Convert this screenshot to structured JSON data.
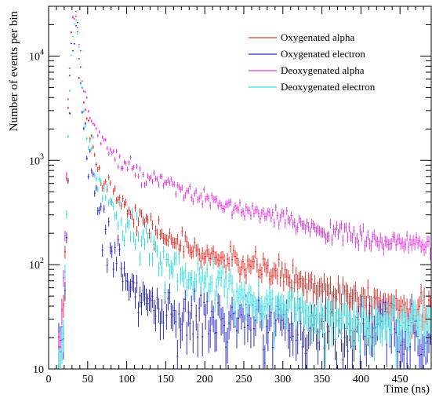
{
  "chart_data": {
    "type": "scatter",
    "title": "",
    "xlabel": "Time (ns)",
    "ylabel": "Number of events per bin",
    "xlim": [
      0,
      490
    ],
    "ylim": [
      10,
      30000
    ],
    "yscale": "log",
    "grid": false,
    "legend_position": "top-right",
    "x_ticks": [
      "0",
      "50",
      "100",
      "150",
      "200",
      "250",
      "300",
      "350",
      "400",
      "450"
    ],
    "y_ticks": [
      {
        "base": "10",
        "exp": ""
      },
      {
        "base": "10",
        "exp": "2"
      },
      {
        "base": "10",
        "exp": "3"
      },
      {
        "base": "10",
        "exp": "4"
      }
    ],
    "x": [
      15,
      20,
      25,
      30,
      35,
      40,
      45,
      50,
      60,
      70,
      80,
      90,
      100,
      125,
      150,
      175,
      200,
      250,
      300,
      350,
      400,
      450,
      490
    ],
    "series": [
      {
        "name": "Oxygenated alpha",
        "color": "#e8302a",
        "noise": 0.14,
        "values": [
          14,
          60,
          3000,
          20000,
          24000,
          9000,
          3500,
          2200,
          1100,
          700,
          520,
          430,
          380,
          250,
          185,
          150,
          125,
          100,
          80,
          60,
          50,
          40,
          35
        ]
      },
      {
        "name": "Oxygenated electron",
        "color": "#2b2bc8",
        "noise": 0.3,
        "values": [
          12,
          25,
          700,
          16000,
          20000,
          6500,
          2500,
          1200,
          500,
          240,
          150,
          100,
          70,
          45,
          36,
          32,
          30,
          28,
          26,
          25,
          24,
          23,
          22
        ]
      },
      {
        "name": "Deoxygenated alpha",
        "color": "#e83ae0",
        "noise": 0.1,
        "values": [
          16,
          90,
          4000,
          23000,
          25000,
          11000,
          4800,
          3300,
          2000,
          1500,
          1200,
          1000,
          850,
          680,
          580,
          500,
          420,
          330,
          270,
          220,
          180,
          160,
          150
        ]
      },
      {
        "name": "Deoxygenated electron",
        "color": "#33e0e0",
        "noise": 0.2,
        "values": [
          12,
          40,
          1500,
          18000,
          22000,
          7500,
          3000,
          1700,
          800,
          450,
          320,
          260,
          220,
          160,
          110,
          85,
          70,
          52,
          40,
          33,
          30,
          28,
          27
        ]
      }
    ]
  }
}
